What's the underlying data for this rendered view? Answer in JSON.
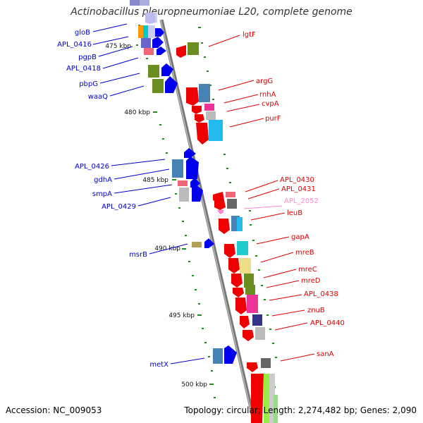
{
  "title": "Actinobacillus pleuropneumoniae L20, complete genome",
  "footer": {
    "accession": "Accession: NC_009053",
    "summary": "Topology: circular; Length: 2,274,482 bp; Genes: 2,090"
  },
  "scale_ticks": [
    {
      "label": "475 kbp"
    },
    {
      "label": "480 kbp"
    },
    {
      "label": "485 kbp"
    },
    {
      "label": "490 kbp"
    },
    {
      "label": "495 kbp"
    },
    {
      "label": "500 kbp"
    }
  ],
  "genes_left": [
    {
      "name": "gloB"
    },
    {
      "name": "APL_0416"
    },
    {
      "name": "pgpB"
    },
    {
      "name": "APL_0418"
    },
    {
      "name": "pbpG"
    },
    {
      "name": "waaQ"
    },
    {
      "name": "APL_0426"
    },
    {
      "name": "gdhA"
    },
    {
      "name": "smpA"
    },
    {
      "name": "APL_0429"
    },
    {
      "name": "msrB"
    },
    {
      "name": "metX"
    }
  ],
  "genes_right": [
    {
      "name": "lgtF"
    },
    {
      "name": "argG"
    },
    {
      "name": "rnhA"
    },
    {
      "name": "cvpA"
    },
    {
      "name": "purF"
    },
    {
      "name": "APL_0430"
    },
    {
      "name": "APL_0431"
    },
    {
      "name": "APL_2052"
    },
    {
      "name": "leuB"
    },
    {
      "name": "gapA"
    },
    {
      "name": "mreB"
    },
    {
      "name": "mreC"
    },
    {
      "name": "mreD"
    },
    {
      "name": "APL_0438"
    },
    {
      "name": "znuB"
    },
    {
      "name": "APL_0440"
    },
    {
      "name": "sanA"
    }
  ],
  "colors": {
    "forward_strand": "#0000ee",
    "reverse_strand": "#ee0000",
    "pseudo_label": "#ff88cc",
    "backbone": "#888888",
    "tick": "#228822"
  }
}
